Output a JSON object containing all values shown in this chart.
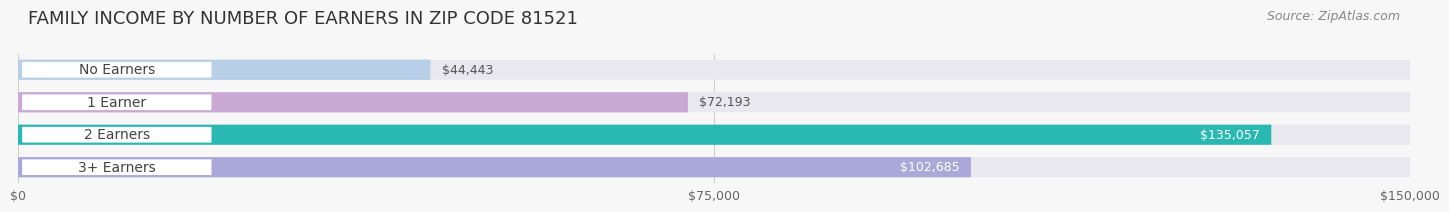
{
  "title": "FAMILY INCOME BY NUMBER OF EARNERS IN ZIP CODE 81521",
  "source": "Source: ZipAtlas.com",
  "categories": [
    "No Earners",
    "1 Earner",
    "2 Earners",
    "3+ Earners"
  ],
  "values": [
    44443,
    72193,
    135057,
    102685
  ],
  "bar_colors": [
    "#b8cfe8",
    "#c9a8d4",
    "#2ab8b2",
    "#a9a8d8"
  ],
  "bar_bg_color": "#e8e8ee",
  "xlim": [
    0,
    150000
  ],
  "xticks": [
    0,
    75000,
    150000
  ],
  "xtick_labels": [
    "$0",
    "$75,000",
    "$150,000"
  ],
  "background_color": "#f7f7f7",
  "title_fontsize": 13,
  "source_fontsize": 9,
  "label_fontsize": 10,
  "value_fontsize": 9
}
